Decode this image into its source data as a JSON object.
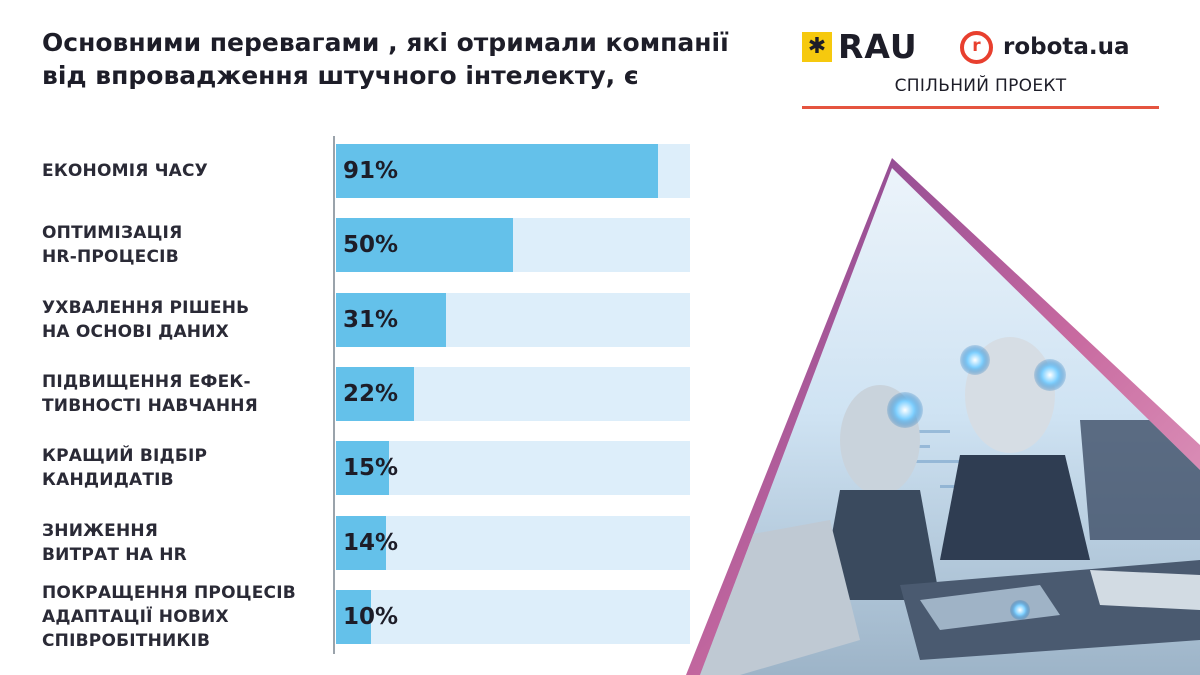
{
  "header": {
    "title": "Основними перевагами , які отримали компанії від впровадження штучного інтелекту, є"
  },
  "logos": {
    "rau_text": "RAU",
    "rau_mark_glyph": "✱",
    "robota_mark_glyph": "r",
    "robota_text": "robota.ua",
    "tagline": "СПІЛЬНИЙ ПРОЕКТ",
    "colors": {
      "rau_yellow": "#f6c90e",
      "robota_red": "#e83f2e",
      "divider": "#e5543f"
    }
  },
  "hero_image": {
    "icon": "ai-robots-illustration",
    "colors": {
      "frame_pink": "#c86aa0",
      "frame_purple": "#7a3f8e",
      "scene_blue": "#9ec9ea"
    }
  },
  "chart_data": {
    "type": "bar",
    "orientation": "horizontal",
    "categories": [
      "ЕКОНОМІЯ ЧАСУ",
      "ОПТИМІЗАЦІЯ HR-ПРОЦЕСІВ",
      "УХВАЛЕННЯ РІШЕНЬ НА ОСНОВІ ДАНИХ",
      "ПІДВИЩЕННЯ ЕФЕК-ТИВНОСТІ НАВЧАННЯ",
      "КРАЩИЙ ВІДБІР КАНДИДАТІВ",
      "ЗНИЖЕННЯ ВИТРАТ НА HR",
      "ПОКРАЩЕННЯ ПРОЦЕСІВ АДАПТАЦІЇ НОВИХ СПІВРОБІТНИКІВ"
    ],
    "label_lines": [
      [
        "ЕКОНОМІЯ ЧАСУ"
      ],
      [
        "ОПТИМІЗАЦІЯ",
        "HR-ПРОЦЕСІВ"
      ],
      [
        "УХВАЛЕННЯ РІШЕНЬ",
        "НА ОСНОВІ ДАНИХ"
      ],
      [
        "ПІДВИЩЕННЯ ЕФЕК-",
        "ТИВНОСТІ НАВЧАННЯ"
      ],
      [
        "КРАЩИЙ ВІДБІР",
        "КАНДИДАТІВ"
      ],
      [
        "ЗНИЖЕННЯ",
        "ВИТРАТ НА HR"
      ],
      [
        "ПОКРАЩЕННЯ ПРОЦЕСІВ",
        "АДАПТАЦІЇ НОВИХ",
        "СПІВРОБІТНИКІВ"
      ]
    ],
    "values": [
      91,
      50,
      31,
      22,
      15,
      14,
      10
    ],
    "value_labels": [
      "91%",
      "50%",
      "31%",
      "22%",
      "15%",
      "14%",
      "10%"
    ],
    "unit": "%",
    "xlim": [
      0,
      100
    ],
    "bar_color": "#64c1ea",
    "track_color": "#ddeefa",
    "grid": false,
    "legend": "none"
  }
}
